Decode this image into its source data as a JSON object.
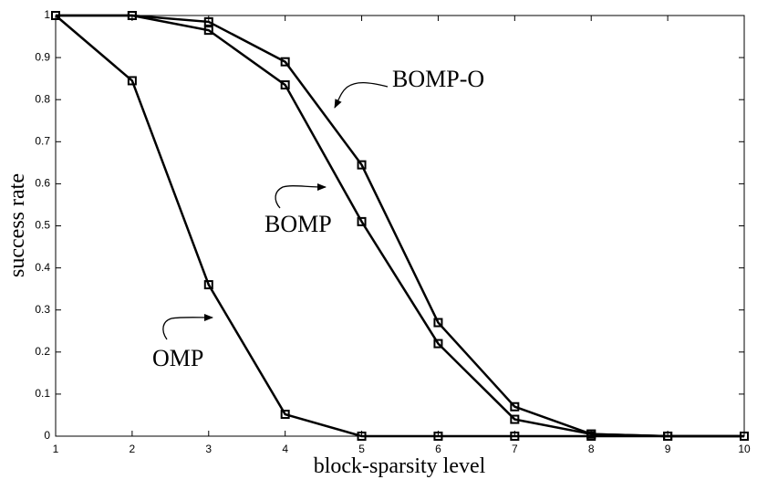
{
  "chart_data": {
    "type": "line",
    "xlabel": "block-sparsity level",
    "ylabel": "success rate",
    "x": [
      1,
      2,
      3,
      4,
      5,
      6,
      7,
      8,
      9,
      10
    ],
    "series": [
      {
        "name": "OMP",
        "color": "#000000",
        "values": [
          1,
          0.845,
          0.36,
          0.052,
          0,
          0,
          0,
          0,
          0,
          0
        ]
      },
      {
        "name": "BOMP",
        "color": "#000000",
        "values": [
          1,
          1,
          0.965,
          0.835,
          0.51,
          0.22,
          0.04,
          0.005,
          0,
          0
        ]
      },
      {
        "name": "BOMP-O",
        "color": "#000000",
        "values": [
          1,
          1,
          0.985,
          0.89,
          0.645,
          0.27,
          0.07,
          0.005,
          0,
          0
        ]
      }
    ],
    "xlim": [
      1,
      10
    ],
    "ylim": [
      0,
      1
    ],
    "xticks": [
      1,
      2,
      3,
      4,
      5,
      6,
      7,
      8,
      9,
      10
    ],
    "yticks": [
      0,
      0.1,
      0.2,
      0.3,
      0.4,
      0.5,
      0.6,
      0.7,
      0.8,
      0.9,
      1
    ]
  }
}
